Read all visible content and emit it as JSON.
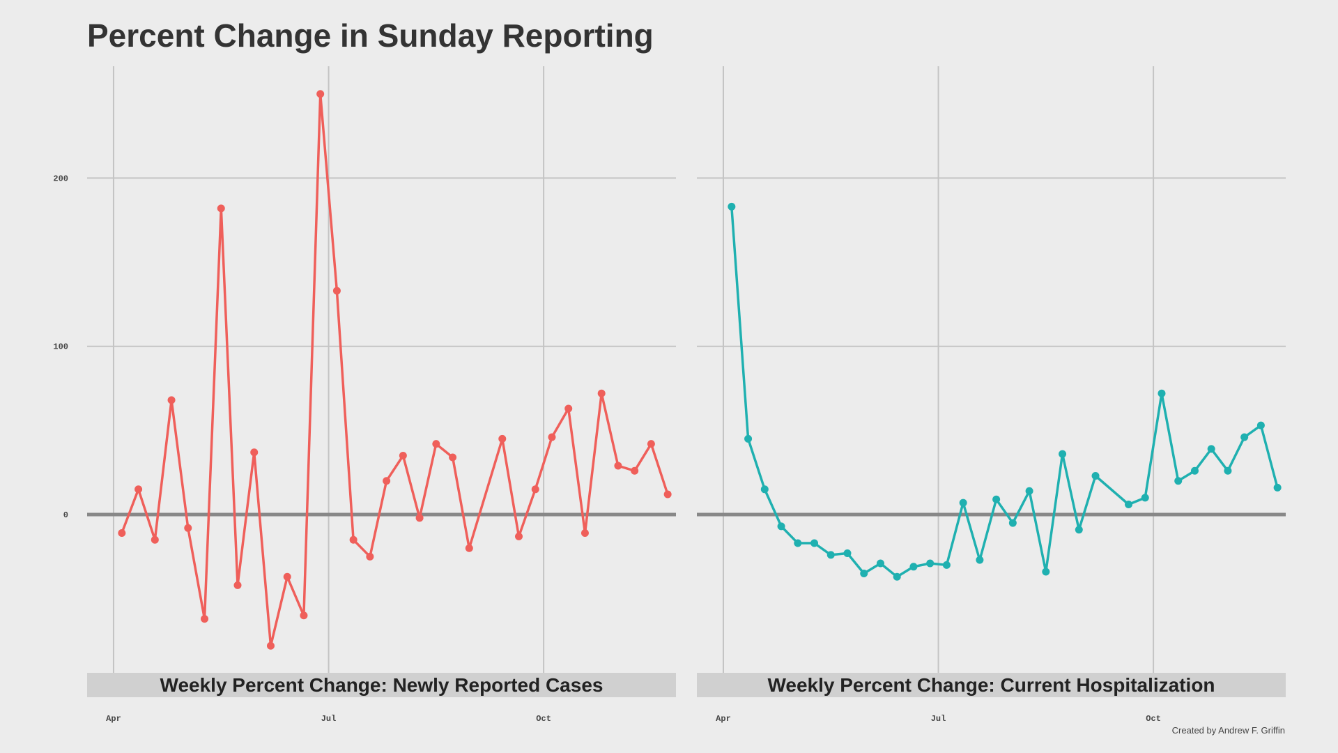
{
  "title": "Percent Change in Sunday Reporting",
  "credit": "Created by Andrew F. Griffin",
  "chart_data": [
    {
      "type": "line",
      "panel_title": "Weekly Percent Change: Newly Reported Cases",
      "x_ticks": [
        "Apr",
        "Jul",
        "Oct"
      ],
      "y_ticks": [
        "0",
        "100",
        "200"
      ],
      "ylim": [
        -95,
        255
      ],
      "xlim_weeks": [
        -1.6,
        34.0
      ],
      "grid": true,
      "color": "#ef5f5a",
      "x": [
        0.5,
        1.5,
        2.5,
        3.5,
        4.5,
        5.5,
        6.5,
        7.5,
        8.5,
        9.5,
        10.5,
        11.5,
        12.5,
        13.5,
        14.5,
        15.5,
        16.5,
        17.5,
        18.5,
        19.5,
        20.5,
        21.5,
        23.5,
        24.5,
        25.5,
        26.5,
        27.5,
        28.5,
        29.5,
        30.5,
        31.5,
        32.5,
        33.5
      ],
      "values": [
        -11,
        15,
        -15,
        68,
        -8,
        -62,
        182,
        -42,
        37,
        -78,
        -37,
        -60,
        250,
        133,
        -15,
        -25,
        20,
        35,
        -2,
        42,
        34,
        -20,
        45,
        -13,
        15,
        46,
        63,
        -11,
        72,
        29,
        26,
        42,
        12
      ]
    },
    {
      "type": "line",
      "panel_title": "Weekly Percent Change: Current Hospitalization",
      "x_ticks": [
        "Apr",
        "Jul",
        "Oct"
      ],
      "y_ticks": [
        "0",
        "100",
        "200"
      ],
      "ylim": [
        -95,
        255
      ],
      "xlim_weeks": [
        -1.6,
        34.0
      ],
      "grid": true,
      "color": "#1fb0b0",
      "x": [
        0.5,
        1.5,
        2.5,
        3.5,
        4.5,
        5.5,
        6.5,
        7.5,
        8.5,
        9.5,
        10.5,
        11.5,
        12.5,
        13.5,
        14.5,
        15.5,
        16.5,
        17.5,
        18.5,
        19.5,
        20.5,
        21.5,
        22.5,
        24.5,
        25.5,
        26.5,
        27.5,
        28.5,
        29.5,
        30.5,
        31.5,
        32.5,
        33.5
      ],
      "values": [
        183,
        45,
        15,
        -7,
        -17,
        -17,
        -24,
        -23,
        -35,
        -29,
        -37,
        -31,
        -29,
        -30,
        7,
        -27,
        9,
        -5,
        14,
        -34,
        36,
        -9,
        23,
        6,
        10,
        72,
        20,
        26,
        39,
        26,
        46,
        53,
        16
      ]
    }
  ]
}
